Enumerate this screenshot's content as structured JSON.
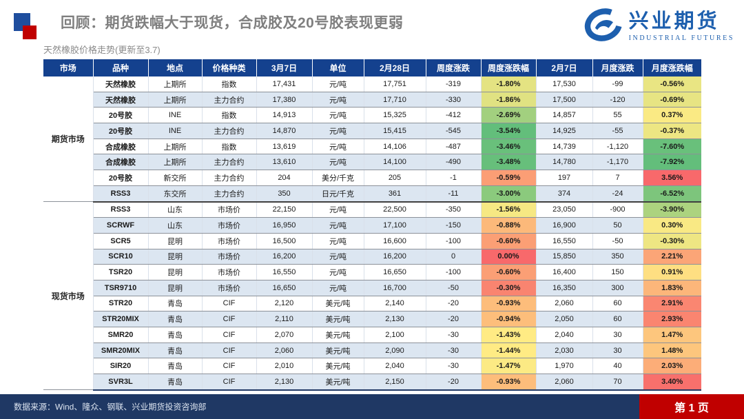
{
  "header": {
    "title": "回顾：期货跌幅大于现货，合成胶及20号胶表现更弱",
    "subtitle": "天然橡胶价格走势(更新至3.7)",
    "logo": {
      "name_cn": "兴业期货",
      "name_en": "INDUSTRIAL FUTURES"
    }
  },
  "table": {
    "columns": [
      "市场",
      "品种",
      "地点",
      "价格种类",
      "3月7日",
      "单位",
      "2月28日",
      "周度涨跌",
      "周度涨跌幅",
      "2月7日",
      "月度涨跌",
      "月度涨跌幅"
    ],
    "groups": [
      {
        "market": "期货市场",
        "rows": [
          {
            "variety": "天然橡胶",
            "location": "上期所",
            "price_type": "指数",
            "mar7": "17,431",
            "unit": "元/吨",
            "feb28": "17,751",
            "wk_chg": "-319",
            "wk_pct": "-1.80%",
            "feb7": "17,530",
            "mo_chg": "-99",
            "mo_pct": "-0.56%"
          },
          {
            "variety": "天然橡胶",
            "location": "上期所",
            "price_type": "主力合约",
            "mar7": "17,380",
            "unit": "元/吨",
            "feb28": "17,710",
            "wk_chg": "-330",
            "wk_pct": "-1.86%",
            "feb7": "17,500",
            "mo_chg": "-120",
            "mo_pct": "-0.69%"
          },
          {
            "variety": "20号胶",
            "location": "INE",
            "price_type": "指数",
            "mar7": "14,913",
            "unit": "元/吨",
            "feb28": "15,325",
            "wk_chg": "-412",
            "wk_pct": "-2.69%",
            "feb7": "14,857",
            "mo_chg": "55",
            "mo_pct": "0.37%"
          },
          {
            "variety": "20号胶",
            "location": "INE",
            "price_type": "主力合约",
            "mar7": "14,870",
            "unit": "元/吨",
            "feb28": "15,415",
            "wk_chg": "-545",
            "wk_pct": "-3.54%",
            "feb7": "14,925",
            "mo_chg": "-55",
            "mo_pct": "-0.37%"
          },
          {
            "variety": "合成橡胶",
            "location": "上期所",
            "price_type": "指数",
            "mar7": "13,619",
            "unit": "元/吨",
            "feb28": "14,106",
            "wk_chg": "-487",
            "wk_pct": "-3.46%",
            "feb7": "14,739",
            "mo_chg": "-1,120",
            "mo_pct": "-7.60%"
          },
          {
            "variety": "合成橡胶",
            "location": "上期所",
            "price_type": "主力合约",
            "mar7": "13,610",
            "unit": "元/吨",
            "feb28": "14,100",
            "wk_chg": "-490",
            "wk_pct": "-3.48%",
            "feb7": "14,780",
            "mo_chg": "-1,170",
            "mo_pct": "-7.92%"
          },
          {
            "variety": "20号胶",
            "location": "新交所",
            "price_type": "主力合约",
            "mar7": "204",
            "unit": "美分/千克",
            "feb28": "205",
            "wk_chg": "-1",
            "wk_pct": "-0.59%",
            "feb7": "197",
            "mo_chg": "7",
            "mo_pct": "3.56%"
          },
          {
            "variety": "RSS3",
            "location": "东交所",
            "price_type": "主力合约",
            "mar7": "350",
            "unit": "日元/千克",
            "feb28": "361",
            "wk_chg": "-11",
            "wk_pct": "-3.00%",
            "feb7": "374",
            "mo_chg": "-24",
            "mo_pct": "-6.52%"
          }
        ]
      },
      {
        "market": "现货市场",
        "rows": [
          {
            "variety": "RSS3",
            "location": "山东",
            "price_type": "市场价",
            "mar7": "22,150",
            "unit": "元/吨",
            "feb28": "22,500",
            "wk_chg": "-350",
            "wk_pct": "-1.56%",
            "feb7": "23,050",
            "mo_chg": "-900",
            "mo_pct": "-3.90%"
          },
          {
            "variety": "SCRWF",
            "location": "山东",
            "price_type": "市场价",
            "mar7": "16,950",
            "unit": "元/吨",
            "feb28": "17,100",
            "wk_chg": "-150",
            "wk_pct": "-0.88%",
            "feb7": "16,900",
            "mo_chg": "50",
            "mo_pct": "0.30%"
          },
          {
            "variety": "SCR5",
            "location": "昆明",
            "price_type": "市场价",
            "mar7": "16,500",
            "unit": "元/吨",
            "feb28": "16,600",
            "wk_chg": "-100",
            "wk_pct": "-0.60%",
            "feb7": "16,550",
            "mo_chg": "-50",
            "mo_pct": "-0.30%"
          },
          {
            "variety": "SCR10",
            "location": "昆明",
            "price_type": "市场价",
            "mar7": "16,200",
            "unit": "元/吨",
            "feb28": "16,200",
            "wk_chg": "0",
            "wk_pct": "0.00%",
            "feb7": "15,850",
            "mo_chg": "350",
            "mo_pct": "2.21%"
          },
          {
            "variety": "TSR20",
            "location": "昆明",
            "price_type": "市场价",
            "mar7": "16,550",
            "unit": "元/吨",
            "feb28": "16,650",
            "wk_chg": "-100",
            "wk_pct": "-0.60%",
            "feb7": "16,400",
            "mo_chg": "150",
            "mo_pct": "0.91%"
          },
          {
            "variety": "TSR9710",
            "location": "昆明",
            "price_type": "市场价",
            "mar7": "16,650",
            "unit": "元/吨",
            "feb28": "16,700",
            "wk_chg": "-50",
            "wk_pct": "-0.30%",
            "feb7": "16,350",
            "mo_chg": "300",
            "mo_pct": "1.83%"
          },
          {
            "variety": "STR20",
            "location": "青岛",
            "price_type": "CIF",
            "mar7": "2,120",
            "unit": "美元/吨",
            "feb28": "2,140",
            "wk_chg": "-20",
            "wk_pct": "-0.93%",
            "feb7": "2,060",
            "mo_chg": "60",
            "mo_pct": "2.91%"
          },
          {
            "variety": "STR20MIX",
            "location": "青岛",
            "price_type": "CIF",
            "mar7": "2,110",
            "unit": "美元/吨",
            "feb28": "2,130",
            "wk_chg": "-20",
            "wk_pct": "-0.94%",
            "feb7": "2,050",
            "mo_chg": "60",
            "mo_pct": "2.93%"
          },
          {
            "variety": "SMR20",
            "location": "青岛",
            "price_type": "CIF",
            "mar7": "2,070",
            "unit": "美元/吨",
            "feb28": "2,100",
            "wk_chg": "-30",
            "wk_pct": "-1.43%",
            "feb7": "2,040",
            "mo_chg": "30",
            "mo_pct": "1.47%"
          },
          {
            "variety": "SMR20MIX",
            "location": "青岛",
            "price_type": "CIF",
            "mar7": "2,060",
            "unit": "美元/吨",
            "feb28": "2,090",
            "wk_chg": "-30",
            "wk_pct": "-1.44%",
            "feb7": "2,030",
            "mo_chg": "30",
            "mo_pct": "1.48%"
          },
          {
            "variety": "SIR20",
            "location": "青岛",
            "price_type": "CIF",
            "mar7": "2,010",
            "unit": "美元/吨",
            "feb28": "2,040",
            "wk_chg": "-30",
            "wk_pct": "-1.47%",
            "feb7": "1,970",
            "mo_chg": "40",
            "mo_pct": "2.03%"
          },
          {
            "variety": "SVR3L",
            "location": "青岛",
            "price_type": "CIF",
            "mar7": "2,130",
            "unit": "美元/吨",
            "feb28": "2,150",
            "wk_chg": "-20",
            "wk_pct": "-0.93%",
            "feb7": "2,060",
            "mo_chg": "70",
            "mo_pct": "3.40%"
          }
        ]
      }
    ]
  },
  "colors": {
    "header_bg": "#14418E",
    "stripe": "#DCE6F1",
    "footer_bg": "#1F3864",
    "accent_red": "#C00000",
    "logo_blue": "#1D5FAE",
    "title_gray": "#7F7F7F",
    "scale_green": "#63BE7B",
    "scale_yellow": "#FFEB84",
    "scale_red": "#F8696B"
  },
  "footer": {
    "source": "数据来源：Wind、隆众、钢联、兴业期货投资咨询部",
    "page": "第 1 页"
  }
}
